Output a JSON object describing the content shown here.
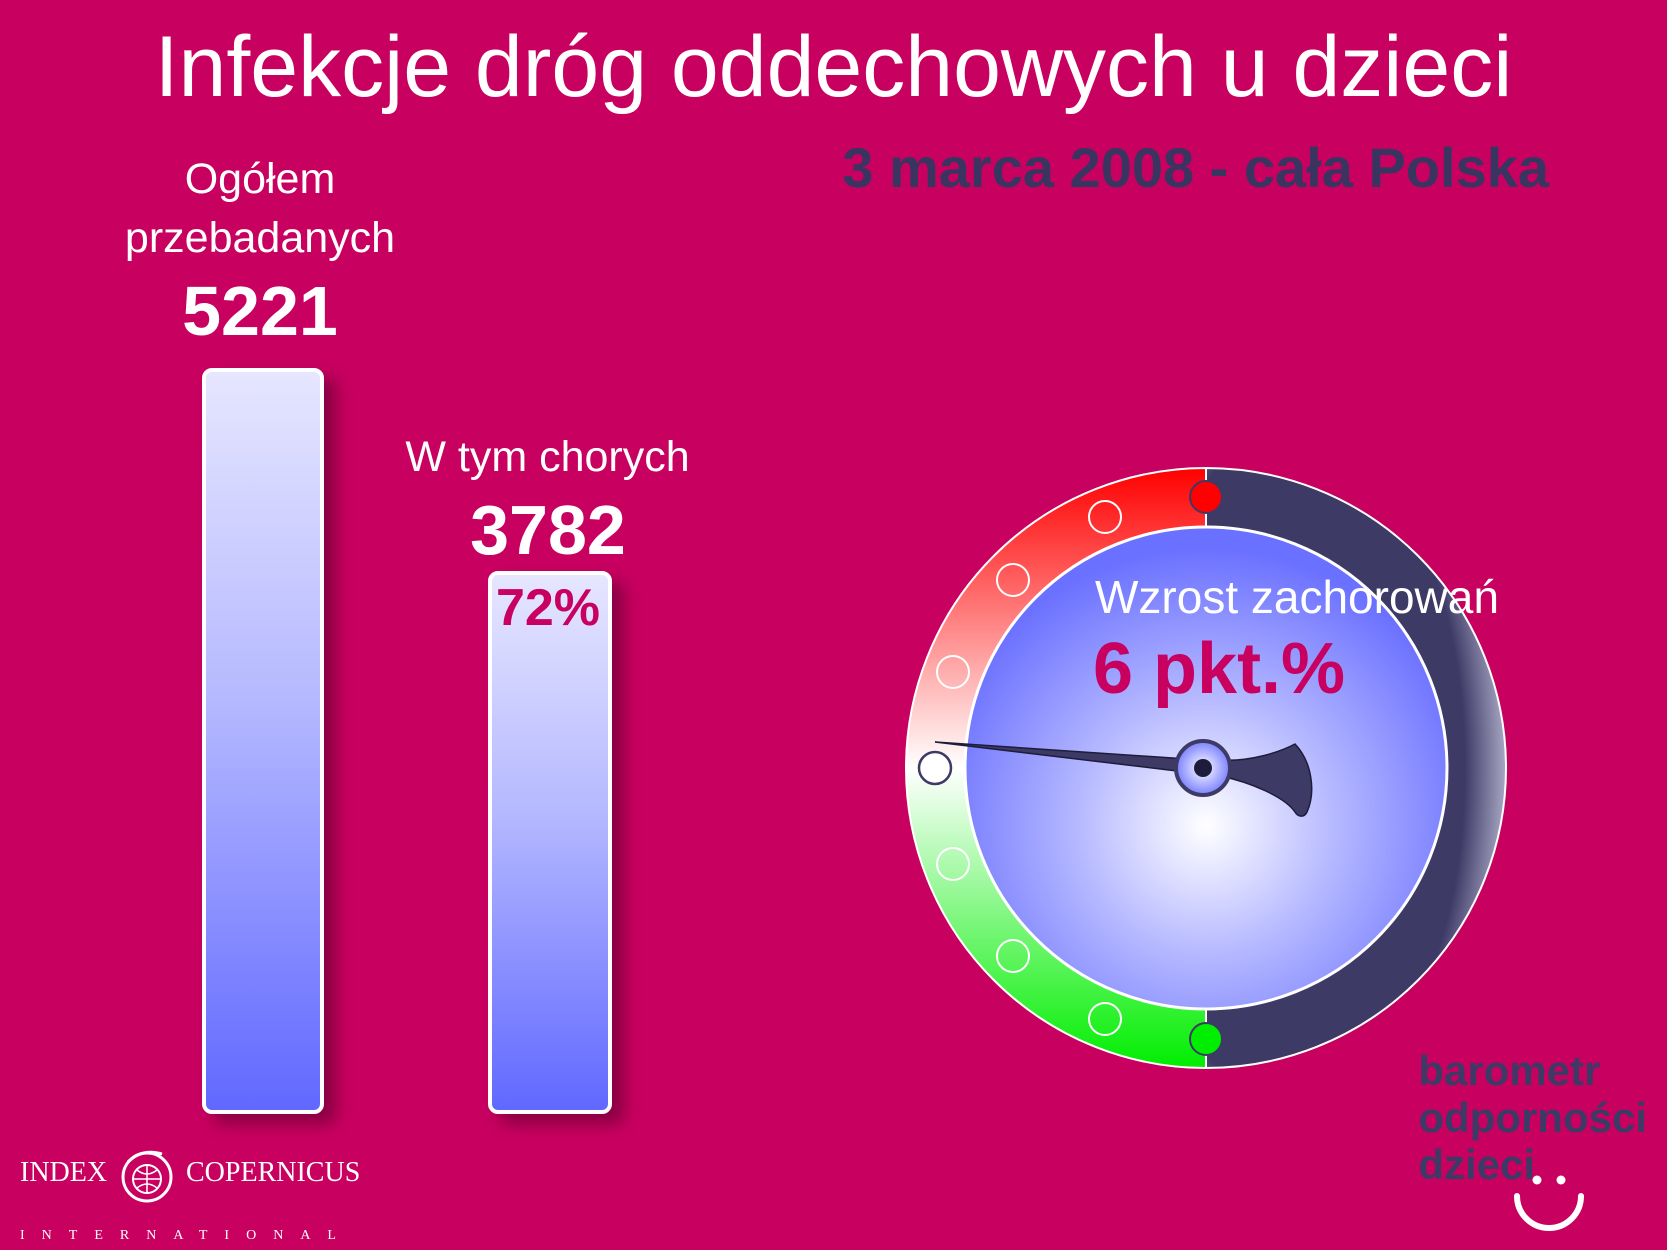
{
  "title": "Infekcje dróg oddechowych u dzieci",
  "subtitle": "3 marca 2008 - cała Polska",
  "chart_data": {
    "type": "bar",
    "categories": [
      "Ogółem przebadanych",
      "W tym chorych"
    ],
    "values": [
      5221,
      3782
    ],
    "value_labels": [
      "5221",
      "3782"
    ],
    "percent_label": "72%",
    "percent_value": 72,
    "ylim": [
      0,
      5221
    ]
  },
  "totals": {
    "label_line1": "Ogółem",
    "label_line2": "przebadanych",
    "value": "5221"
  },
  "sick": {
    "label": "W tym chorych",
    "value": "3782",
    "percent": "72%"
  },
  "gauge": {
    "label": "Wzrost zachorowań",
    "value_text": "6 pkt.%",
    "value": 6,
    "colors": {
      "red": "#ff0000",
      "green": "#00ee00",
      "dark": "#3d3a66",
      "face": "#6a70ff",
      "needle": "#3d3a66"
    }
  },
  "brand": {
    "line1": "barometr",
    "line2": "odporności",
    "line3": "dzieci"
  },
  "logo": {
    "left": "INDEX",
    "right": "COPERNICUS",
    "sub": "INTERNATIONAL",
    "icon": "globe-icon"
  },
  "colors": {
    "background": "#c80060",
    "bar_top": "#e6e6ff",
    "bar_bottom": "#6168ff",
    "accent_dark": "#3a3560"
  }
}
